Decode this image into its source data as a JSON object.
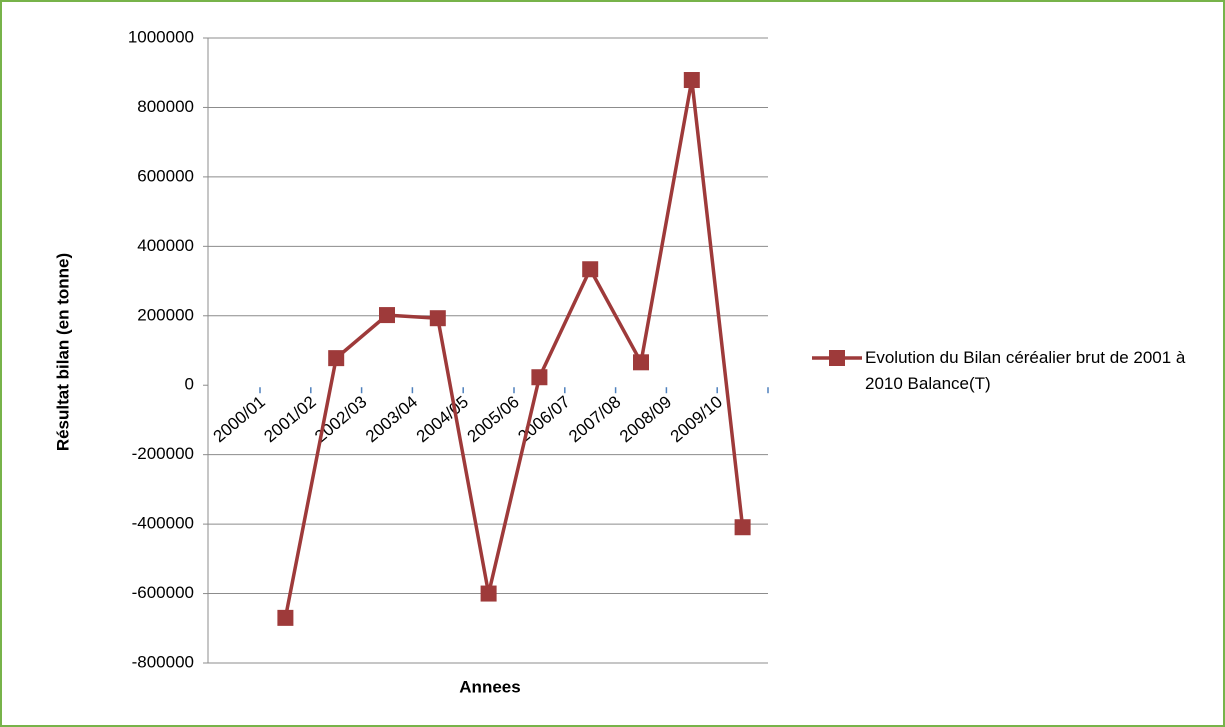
{
  "chart_data": {
    "type": "line",
    "x_label": "Annees",
    "y_label": "Résultat bilan (en tonne)",
    "categories": [
      "2000/01",
      "2001/02",
      "2002/03",
      "2003/04",
      "2004/05",
      "2005/06",
      "2006/07",
      "2007/08",
      "2008/09",
      "2009/10"
    ],
    "series": [
      {
        "name": "Evolution du Bilan céréalier brut de 2001 à 2010 Balance(T)",
        "color": "#9e3a3a",
        "values": [
          -670000,
          78000,
          202000,
          193000,
          -600000,
          23000,
          334000,
          66000,
          879000,
          -409000
        ]
      }
    ],
    "ylim": [
      -800000,
      1000000
    ],
    "yticks": [
      -800000,
      -600000,
      -400000,
      -200000,
      0,
      200000,
      400000,
      600000,
      800000,
      1000000
    ],
    "grid": true,
    "legend": "right"
  }
}
